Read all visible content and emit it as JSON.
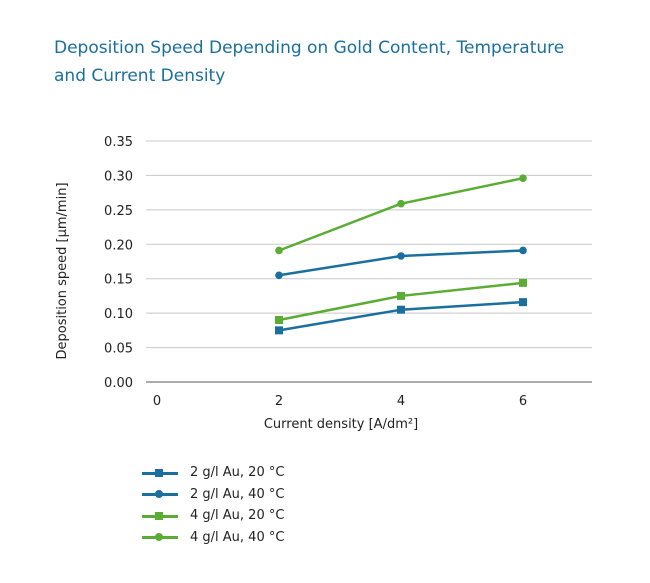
{
  "title_lines": [
    "Deposition Speed Depending on Gold Content, Temperature",
    "and Current Density"
  ],
  "chart_data": {
    "type": "line",
    "title": "Deposition Speed Depending on Gold Content, Temperature and Current Density",
    "xlabel": "Current density [A/dm²]",
    "ylabel": "Deposition speed [µm/min]",
    "x_ticks": [
      "0",
      "2",
      "4",
      "6"
    ],
    "y_ticks": [
      "0.00",
      "0.05",
      "0.10",
      "0.15",
      "0.20",
      "0.25",
      "0.30",
      "0.35"
    ],
    "xlim": [
      0,
      7.1
    ],
    "ylim": [
      0,
      0.35
    ],
    "grid": "horizontal",
    "legend_position": "bottom-left",
    "x": [
      2,
      4,
      6
    ],
    "series": [
      {
        "name": "2 g/l Au, 20 °C",
        "values": [
          0.075,
          0.105,
          0.116
        ],
        "color": "#1a6f9f",
        "marker": "square"
      },
      {
        "name": "2 g/l Au, 40 °C",
        "values": [
          0.155,
          0.183,
          0.191
        ],
        "color": "#1a6f9f",
        "marker": "circle"
      },
      {
        "name": "4 g/l Au, 20 °C",
        "values": [
          0.09,
          0.125,
          0.144
        ],
        "color": "#5aac34",
        "marker": "square"
      },
      {
        "name": "4 g/l Au, 40 °C",
        "values": [
          0.191,
          0.259,
          0.296
        ],
        "color": "#5aac34",
        "marker": "circle"
      }
    ]
  }
}
